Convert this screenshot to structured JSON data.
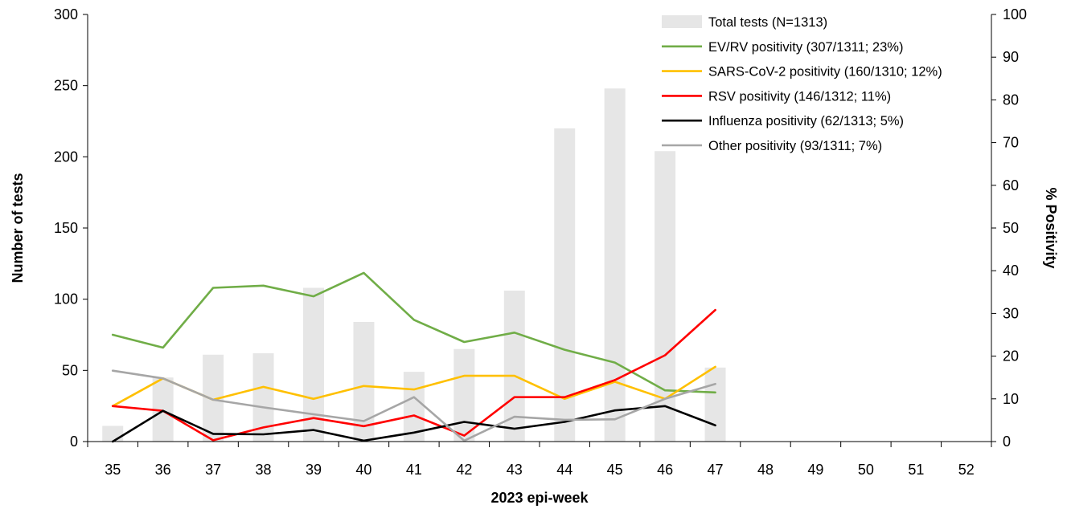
{
  "chart_data": {
    "type": "bar",
    "xlabel": "2023 epi-week",
    "ylabel": "Number of tests",
    "y2label": "% Positivity",
    "ylim": [
      0,
      300
    ],
    "y2lim": [
      0,
      100
    ],
    "yticks": [
      0,
      50,
      100,
      150,
      200,
      250,
      300
    ],
    "y2ticks": [
      0,
      10,
      20,
      30,
      40,
      50,
      60,
      70,
      80,
      90,
      100
    ],
    "grid": false,
    "legend_position": "top-right",
    "categories": [
      "35",
      "36",
      "37",
      "38",
      "39",
      "40",
      "41",
      "42",
      "43",
      "44",
      "45",
      "46",
      "47",
      "48",
      "49",
      "50",
      "51",
      "52"
    ],
    "bar_series": {
      "name": "Total tests (N=1313)",
      "color": "#e6e6e6",
      "axis": "left",
      "values": [
        11,
        45,
        61,
        62,
        108,
        84,
        49,
        65,
        106,
        220,
        248,
        204,
        52,
        null,
        null,
        null,
        null,
        null
      ]
    },
    "line_series": [
      {
        "name": "EV/RV positivity (307/1311; 23%)",
        "color": "#70ad47",
        "axis": "right",
        "values": [
          25,
          22,
          36,
          36.5,
          34,
          39.5,
          28.5,
          23.3,
          25.5,
          21.5,
          18.5,
          12,
          11.5,
          null,
          null,
          null,
          null,
          null
        ]
      },
      {
        "name": "SARS-CoV-2 positivity (160/1310; 12%)",
        "color": "#ffc000",
        "axis": "right",
        "values": [
          8.3,
          14.8,
          9.8,
          12.8,
          10,
          13,
          12.2,
          15.4,
          15.4,
          10,
          14,
          10,
          17.5,
          null,
          null,
          null,
          null,
          null
        ]
      },
      {
        "name": "RSV positivity (146/1312; 11%)",
        "color": "#ff0000",
        "axis": "right",
        "values": [
          8.3,
          7.2,
          0.3,
          3.3,
          5.5,
          3.6,
          6.1,
          1.4,
          10.4,
          10.4,
          14.4,
          20.2,
          30.8,
          null,
          null,
          null,
          null,
          null
        ]
      },
      {
        "name": "Influenza positivity (62/1313; 5%)",
        "color": "#000000",
        "axis": "right",
        "values": [
          0,
          7.2,
          1.8,
          1.7,
          2.7,
          0.2,
          2.1,
          4.6,
          3,
          4.6,
          7.3,
          8.3,
          3.8,
          null,
          null,
          null,
          null,
          null
        ]
      },
      {
        "name": "Other positivity (93/1311; 7%)",
        "color": "#a6a6a6",
        "axis": "right",
        "values": [
          16.6,
          14.8,
          9.8,
          8,
          6.4,
          4.8,
          10.4,
          0.2,
          5.8,
          5.1,
          5.2,
          10,
          13.5,
          null,
          null,
          null,
          null,
          null
        ]
      }
    ]
  }
}
